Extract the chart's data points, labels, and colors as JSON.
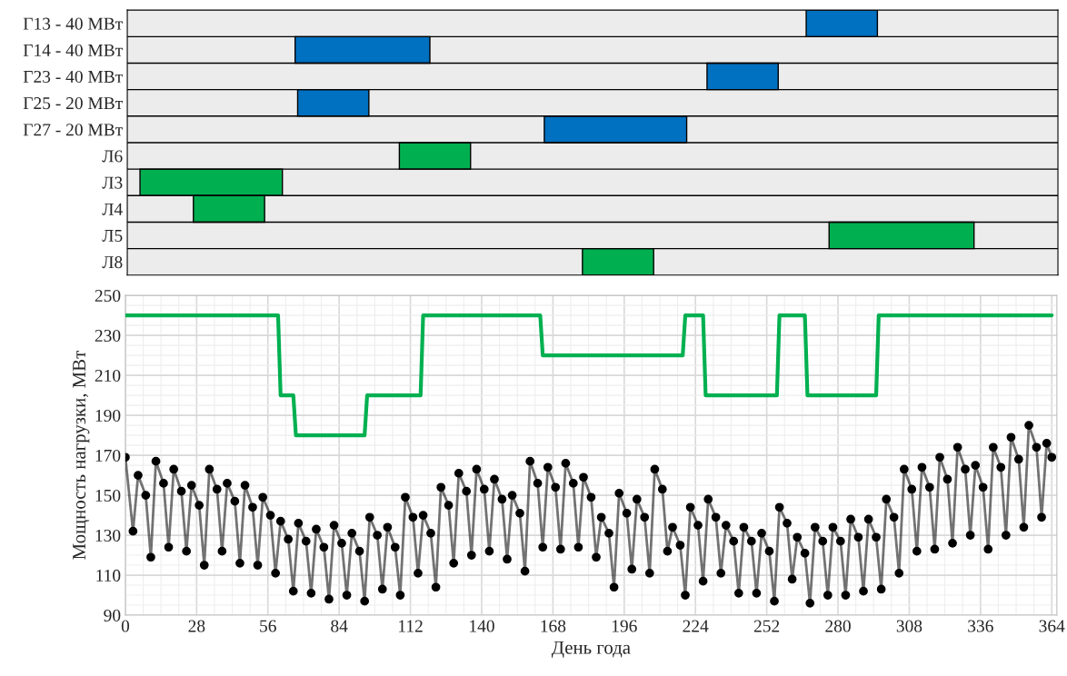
{
  "chart_data": [
    {
      "type": "bar",
      "orientation": "horizontal",
      "categories": [
        "Г13 - 40 МВт",
        "Г14 - 40 МВт",
        "Г23 - 40 МВт",
        "Г25 - 20 МВт",
        "Г27 - 20 МВт",
        "Л6",
        "Л3",
        "Л4",
        "Л5",
        "Л8"
      ],
      "base": [
        267,
        66,
        228,
        67,
        164,
        107,
        5,
        26,
        276,
        179
      ],
      "values": [
        28,
        53,
        28,
        28,
        56,
        28,
        56,
        28,
        57,
        28
      ],
      "colors": [
        "#0070c0",
        "#0070c0",
        "#0070c0",
        "#0070c0",
        "#0070c0",
        "#00b050",
        "#00b050",
        "#00b050",
        "#00b050",
        "#00b050"
      ],
      "xlim": [
        0,
        366
      ],
      "tick_labels": "y"
    },
    {
      "type": "line",
      "xlabel": "День года",
      "ylabel": "Мощность нагрузки, МВт",
      "xlim": [
        0,
        366
      ],
      "ylim": [
        90,
        250
      ],
      "xticks": [
        0,
        28,
        56,
        84,
        112,
        140,
        168,
        196,
        224,
        252,
        280,
        308,
        336,
        364
      ],
      "yticks": [
        90,
        110,
        130,
        150,
        170,
        190,
        210,
        230,
        250
      ],
      "grid": true,
      "series": [
        {
          "color": "#00b050",
          "marker": "none",
          "x": [
            0,
            60,
            61,
            66,
            67,
            94,
            95,
            116,
            117,
            163,
            164,
            219,
            220,
            227,
            228,
            256,
            257,
            267,
            268,
            295,
            296,
            364
          ],
          "values": [
            240,
            240,
            200,
            200,
            180,
            180,
            200,
            200,
            240,
            240,
            220,
            220,
            240,
            240,
            200,
            200,
            240,
            240,
            200,
            200,
            240,
            240
          ]
        },
        {
          "color": "#000000",
          "marker": "circle",
          "x": [
            0,
            3,
            5,
            8,
            10,
            12,
            15,
            17,
            19,
            22,
            24,
            26,
            29,
            31,
            33,
            36,
            38,
            40,
            43,
            45,
            47,
            50,
            52,
            54,
            57,
            59,
            61,
            64,
            66,
            68,
            71,
            73,
            75,
            78,
            80,
            82,
            85,
            87,
            89,
            92,
            94,
            96,
            99,
            101,
            103,
            106,
            108,
            110,
            113,
            115,
            117,
            120,
            122,
            124,
            127,
            129,
            131,
            134,
            136,
            138,
            141,
            143,
            145,
            148,
            150,
            152,
            155,
            157,
            159,
            162,
            164,
            166,
            169,
            171,
            173,
            176,
            178,
            180,
            183,
            185,
            187,
            190,
            192,
            194,
            197,
            199,
            201,
            204,
            206,
            208,
            211,
            213,
            215,
            218,
            220,
            222,
            225,
            227,
            229,
            232,
            234,
            236,
            239,
            241,
            243,
            246,
            248,
            250,
            253,
            255,
            257,
            260,
            262,
            264,
            267,
            269,
            271,
            274,
            276,
            278,
            281,
            283,
            285,
            288,
            290,
            292,
            295,
            297,
            299,
            302,
            304,
            306,
            309,
            311,
            313,
            316,
            318,
            320,
            323,
            325,
            327,
            330,
            332,
            334,
            337,
            339,
            341,
            344,
            346,
            348,
            351,
            353,
            355,
            358,
            360,
            362,
            364
          ],
          "values": [
            169,
            132,
            160,
            150,
            119,
            167,
            156,
            124,
            163,
            152,
            122,
            155,
            145,
            115,
            163,
            153,
            122,
            156,
            147,
            116,
            155,
            144,
            115,
            149,
            140,
            111,
            137,
            128,
            102,
            136,
            127,
            101,
            133,
            124,
            98,
            135,
            126,
            100,
            131,
            122,
            97,
            139,
            130,
            103,
            134,
            124,
            100,
            149,
            139,
            111,
            140,
            131,
            104,
            154,
            145,
            116,
            161,
            152,
            120,
            163,
            153,
            122,
            158,
            148,
            118,
            150,
            141,
            112,
            167,
            156,
            124,
            164,
            154,
            123,
            166,
            156,
            124,
            159,
            149,
            119,
            139,
            131,
            104,
            151,
            141,
            113,
            148,
            139,
            111,
            163,
            153,
            122,
            134,
            125,
            100,
            144,
            135,
            107,
            148,
            139,
            111,
            135,
            127,
            101,
            134,
            127,
            101,
            131,
            122,
            97,
            144,
            136,
            108,
            129,
            121,
            96,
            134,
            127,
            100,
            134,
            127,
            100,
            138,
            129,
            102,
            138,
            129,
            103,
            148,
            139,
            111,
            163,
            153,
            122,
            164,
            154,
            123,
            169,
            158,
            126,
            174,
            163,
            130,
            165,
            154,
            123,
            174,
            164,
            130,
            179,
            168,
            134,
            185,
            174,
            139,
            176,
            169
          ]
        }
      ]
    }
  ]
}
